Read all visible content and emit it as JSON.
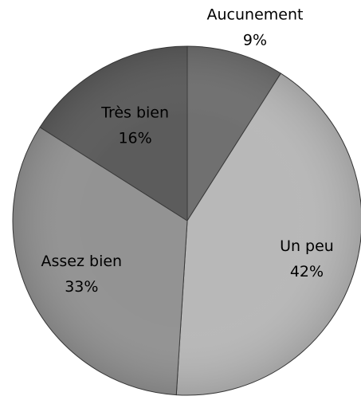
{
  "chart_data": {
    "type": "pie",
    "categories": [
      "Aucunement",
      "Un peu",
      "Assez bien",
      "Très bien"
    ],
    "values": [
      9,
      42,
      33,
      16
    ],
    "value_labels": [
      "9%",
      "42%",
      "33%",
      "16%"
    ],
    "colors": [
      "#707070",
      "#b8b8b8",
      "#939393",
      "#5c5c5c"
    ]
  }
}
